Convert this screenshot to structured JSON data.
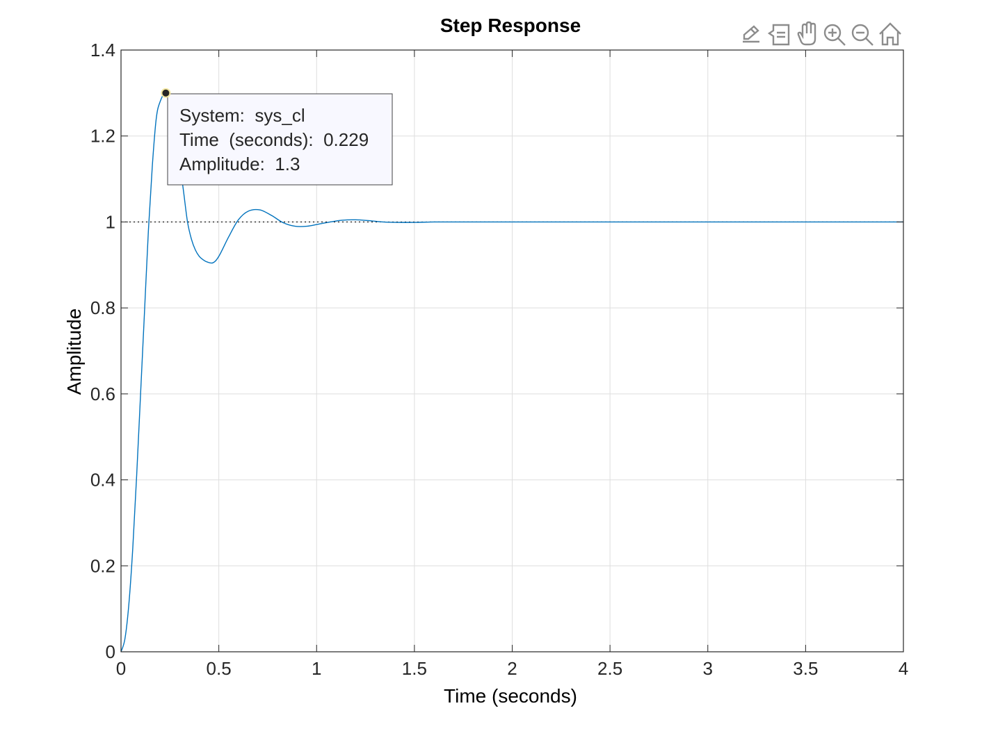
{
  "toolbar": {
    "icons": [
      "brush-icon",
      "datatips-icon",
      "pan-icon",
      "zoom-in-icon",
      "zoom-out-icon",
      "home-icon"
    ]
  },
  "chart_data": {
    "type": "line",
    "title": "Step Response",
    "xlabel": "Time (seconds)",
    "ylabel": "Amplitude",
    "xlim": [
      0,
      4
    ],
    "ylim": [
      0,
      1.4
    ],
    "xticks": [
      0,
      0.5,
      1,
      1.5,
      2,
      2.5,
      3,
      3.5,
      4
    ],
    "xtick_labels": [
      "0",
      "0.5",
      "1",
      "1.5",
      "2",
      "2.5",
      "3",
      "3.5",
      "4"
    ],
    "yticks": [
      0,
      0.2,
      0.4,
      0.6,
      0.8,
      1,
      1.2,
      1.4
    ],
    "ytick_labels": [
      "0",
      "0.2",
      "0.4",
      "0.6",
      "0.8",
      "1",
      "1.2",
      "1.4"
    ],
    "grid": true,
    "series": [
      {
        "color": "#0072BD",
        "x": [
          0,
          0.02,
          0.04,
          0.06,
          0.08,
          0.1,
          0.12,
          0.14,
          0.16,
          0.18,
          0.2,
          0.229,
          0.26,
          0.28,
          0.3,
          0.32,
          0.34,
          0.36,
          0.38,
          0.4,
          0.42,
          0.44,
          0.47,
          0.5,
          0.55,
          0.6,
          0.65,
          0.71,
          0.77,
          0.83,
          0.89,
          0.95,
          1.01,
          1.07,
          1.13,
          1.2,
          1.27,
          1.34,
          1.41,
          1.5,
          1.6,
          1.7,
          1.8,
          2.0,
          2.5,
          3.0,
          3.5,
          4.0
        ],
        "y": [
          0,
          0.03,
          0.11,
          0.24,
          0.41,
          0.6,
          0.79,
          0.98,
          1.13,
          1.24,
          1.28,
          1.3,
          1.27,
          1.22,
          1.14,
          1.07,
          1.0,
          0.96,
          0.935,
          0.92,
          0.912,
          0.907,
          0.905,
          0.92,
          0.965,
          1.005,
          1.025,
          1.028,
          1.015,
          0.998,
          0.99,
          0.99,
          0.995,
          1.0,
          1.004,
          1.005,
          1.003,
          1.0,
          0.999,
          0.999,
          1.0,
          1.0,
          1.0,
          1.0,
          1.0,
          1.0,
          1.0,
          1.0
        ]
      }
    ],
    "reference_line": {
      "y": 1,
      "style": "dotted",
      "color": "#000000"
    },
    "datatip": {
      "x": 0.229,
      "y": 1.3,
      "lines": [
        "System:  sys_cl",
        "Time  (seconds):  0.229",
        "Amplitude:  1.3"
      ]
    }
  }
}
